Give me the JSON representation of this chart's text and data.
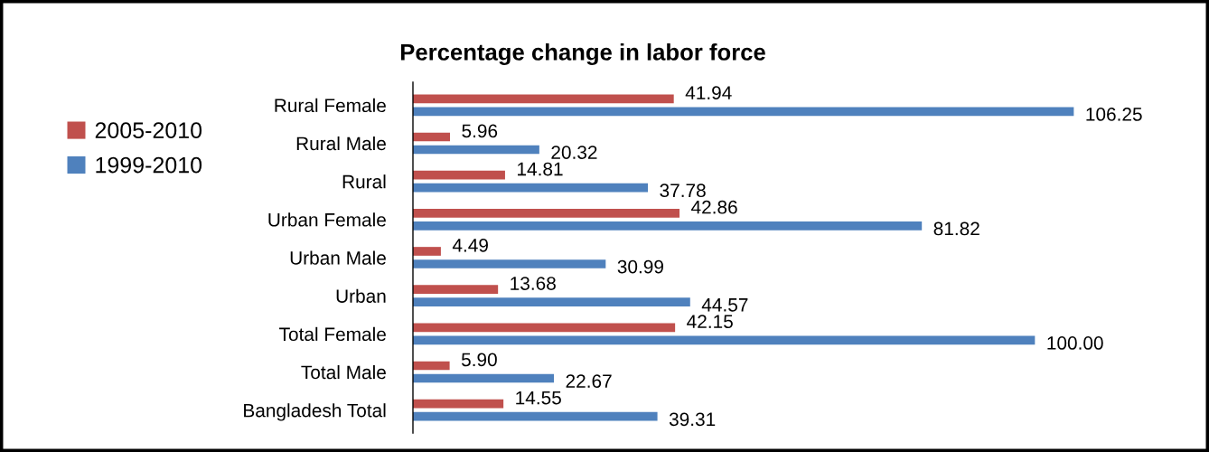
{
  "chart_data": {
    "type": "bar",
    "orientation": "horizontal",
    "title": "Percentage change in labor force",
    "categories": [
      "Rural Female",
      "Rural Male",
      "Rural",
      "Urban Female",
      "Urban Male",
      "Urban",
      "Total Female",
      "Total Male",
      "Bangladesh Total"
    ],
    "series": [
      {
        "name": "2005-2010",
        "color": "#c0504d",
        "values": [
          41.94,
          5.96,
          14.81,
          42.86,
          4.49,
          13.68,
          42.15,
          5.9,
          14.55
        ],
        "value_labels": [
          "41.94",
          "5.96",
          "14.81",
          "42.86",
          "4.49",
          "13.68",
          "42.15",
          "5.90",
          "14.55"
        ]
      },
      {
        "name": "1999-2010",
        "color": "#4f81bd",
        "values": [
          106.25,
          20.32,
          37.78,
          81.82,
          30.99,
          44.57,
          100.0,
          22.67,
          39.31
        ],
        "value_labels": [
          "106.25",
          "20.32",
          "37.78",
          "81.82",
          "30.99",
          "44.57",
          "100.00",
          "22.67",
          "39.31"
        ]
      }
    ],
    "legend": "left",
    "tick_labels": "y"
  }
}
